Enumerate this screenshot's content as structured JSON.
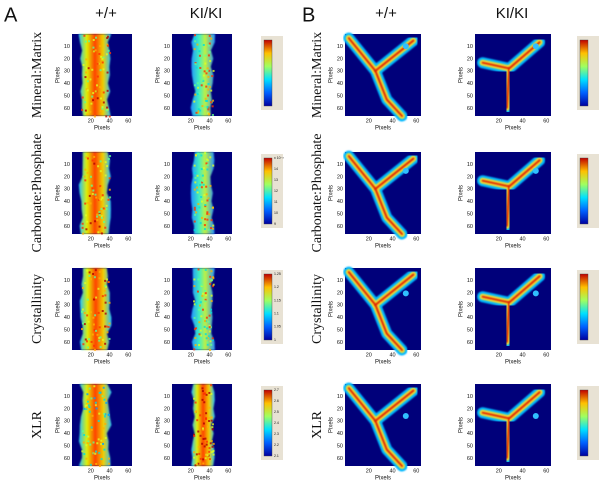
{
  "panels": [
    {
      "label": "A",
      "columns": [
        "+/+",
        "KI/KI"
      ],
      "rows": [
        {
          "label": "Mineral:Matrix"
        },
        {
          "label": "Carbonate:Phosphate",
          "colorbar_labels": [
            "x 10⁻³",
            "14",
            "13",
            "12",
            "11",
            "10",
            "9"
          ]
        },
        {
          "label": "Crystallinity",
          "colorbar_labels": [
            "1.25",
            "1.2",
            "1.15",
            "1.1",
            "1.05",
            "1"
          ]
        },
        {
          "label": "XLR",
          "colorbar_labels": [
            "2.7",
            "2.6",
            "2.5",
            "2.4",
            "2.3",
            "2.2",
            "2.1"
          ]
        }
      ]
    },
    {
      "label": "B",
      "columns": [
        "+/+",
        "KI/KI"
      ],
      "rows": [
        {
          "label": "Mineral:Matrix"
        },
        {
          "label": "Carbonate:Phosphate"
        },
        {
          "label": "Crystallinity"
        },
        {
          "label": "XLR"
        }
      ]
    }
  ],
  "axes": {
    "x_label": "Pixels",
    "y_label": "Pixels",
    "x_ticks": [
      "20",
      "40",
      "60"
    ],
    "y_ticks": [
      "10",
      "20",
      "30",
      "40",
      "50",
      "60"
    ]
  }
}
